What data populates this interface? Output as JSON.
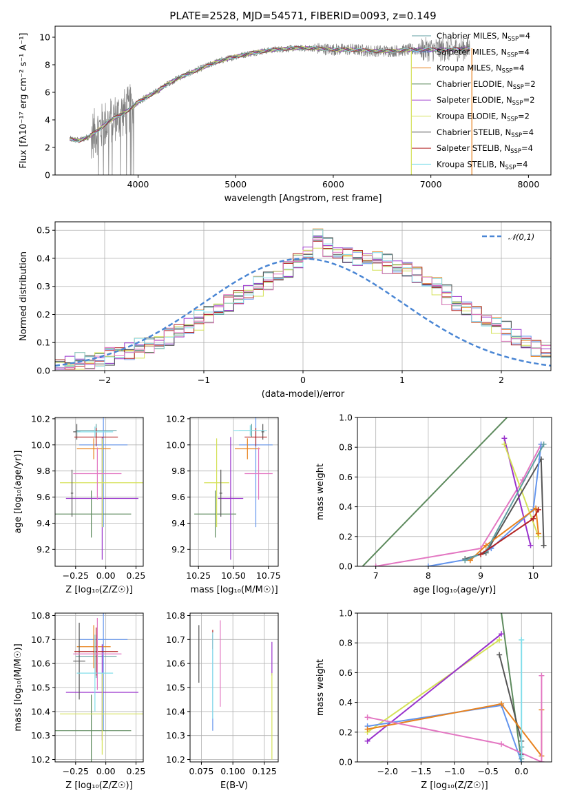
{
  "title": "PLATE=2528, MJD=54571, FIBERID=0093, z=0.149",
  "palette": [
    "#5f9ea0",
    "#6495ed",
    "#e8821e",
    "#5d8a5d",
    "#9932cc",
    "#d4e157",
    "#555555",
    "#b22222",
    "#80deea",
    "#e377c2"
  ],
  "chart_data": [
    {
      "type": "line",
      "id": "spectrum",
      "title": "PLATE=2528, MJD=54571, FIBERID=0093, z=0.149",
      "xlabel": "wavelength [Angstrom, rest frame]",
      "ylabel": "Flux [fλ10⁻¹⁷ erg cm⁻² s⁻¹ A⁻¹]",
      "xlim": [
        3150,
        8230
      ],
      "ylim": [
        0,
        10.8
      ],
      "xticks": [
        4000,
        5000,
        6000,
        7000,
        8000
      ],
      "yticks": [
        0,
        2,
        4,
        6,
        8,
        10
      ],
      "grid": false,
      "legend_position": "top-right",
      "legend": [
        {
          "label": "Chabrier MILES, N",
          "sub": "SSP",
          "tail": "=4",
          "color": "#5f9ea0"
        },
        {
          "label": "Salpeter MILES, N",
          "sub": "SSP",
          "tail": "=4",
          "color": "#6495ed"
        },
        {
          "label": "Kroupa MILES, N",
          "sub": "SSP",
          "tail": "=4",
          "color": "#e8821e"
        },
        {
          "label": "Chabrier ELODIE, N",
          "sub": "SSP",
          "tail": "=2",
          "color": "#5d8a5d"
        },
        {
          "label": "Salpeter ELODIE, N",
          "sub": "SSP",
          "tail": "=2",
          "color": "#9932cc"
        },
        {
          "label": "Kroupa ELODIE, N",
          "sub": "SSP",
          "tail": "=2",
          "color": "#d4e157"
        },
        {
          "label": "Chabrier STELIB, N",
          "sub": "SSP",
          "tail": "=4",
          "color": "#555555"
        },
        {
          "label": "Salpeter STELIB, N",
          "sub": "SSP",
          "tail": "=4",
          "color": "#b22222"
        },
        {
          "label": "Kroupa STELIB, N",
          "sub": "SSP",
          "tail": "=4",
          "color": "#80deea"
        }
      ],
      "continuum": {
        "wavelength": [
          3300,
          3400,
          3500,
          3600,
          3700,
          3800,
          3900,
          4000,
          4100,
          4200,
          4300,
          4400,
          4500,
          4600,
          4800,
          5000,
          5200,
          5400,
          5600,
          5800,
          6000,
          6200,
          6400,
          6600,
          6800,
          7000,
          7200,
          7400
        ],
        "flux": [
          2.6,
          2.5,
          2.8,
          3.3,
          3.9,
          4.3,
          4.7,
          5.3,
          5.7,
          6.1,
          6.6,
          7.0,
          7.3,
          7.6,
          8.2,
          8.6,
          8.9,
          9.1,
          9.2,
          9.2,
          9.1,
          9.1,
          9.0,
          9.0,
          9.1,
          9.1,
          9.1,
          9.2
        ]
      },
      "model_range": [
        3300,
        7400
      ],
      "model_cutoffs": [
        6800,
        7420
      ]
    },
    {
      "type": "histogram",
      "id": "residuals",
      "xlabel": "(data-model)/error",
      "ylabel": "Normed distribution",
      "xlim": [
        -2.5,
        2.5
      ],
      "ylim": [
        0,
        0.53
      ],
      "xticks": [
        -2,
        -1,
        0,
        1,
        2
      ],
      "xticklabels": [
        "−2",
        "−1",
        "0",
        "1",
        "2"
      ],
      "yticks": [
        0,
        0.1,
        0.2,
        0.3,
        0.4,
        0.5
      ],
      "yticklabels": [
        "0.0",
        "0.1",
        "0.2",
        "0.3",
        "0.4",
        "0.5"
      ],
      "grid": true,
      "legend_position": "top-right",
      "reference_curve": {
        "name": "𝒩(0,1)",
        "color": "#4a86d4"
      },
      "bin_width": 0.1,
      "bin_start": -2.5,
      "base_values": [
        0.02,
        0.02,
        0.03,
        0.03,
        0.04,
        0.05,
        0.06,
        0.07,
        0.08,
        0.09,
        0.1,
        0.12,
        0.14,
        0.16,
        0.18,
        0.2,
        0.22,
        0.24,
        0.26,
        0.28,
        0.3,
        0.32,
        0.34,
        0.36,
        0.39,
        0.42,
        0.47,
        0.44,
        0.42,
        0.41,
        0.4,
        0.4,
        0.39,
        0.38,
        0.37,
        0.36,
        0.34,
        0.32,
        0.3,
        0.27,
        0.24,
        0.22,
        0.2,
        0.18,
        0.16,
        0.14,
        0.12,
        0.1,
        0.08,
        0.07,
        0.06,
        0.05,
        0.04,
        0.03,
        0.03,
        0.02
      ]
    },
    {
      "type": "scatter",
      "id": "age-vs-Z",
      "xlabel": "Z [log₁₀(Z/Z☉)]",
      "ylabel": "age  [log₁₀(age/yr)]",
      "xlim": [
        -0.42,
        0.31
      ],
      "ylim": [
        9.07,
        10.21
      ],
      "xticks": [
        -0.25,
        0.0,
        0.25
      ],
      "xticklabels": [
        "−0.25",
        "0.00",
        "0.25"
      ],
      "yticks": [
        9.2,
        9.4,
        9.6,
        9.8,
        10.0,
        10.2
      ],
      "yticklabels": [
        "9.2",
        "9.4",
        "9.6",
        "9.8",
        "10.0",
        "10.2"
      ],
      "grid": true,
      "crosses": [
        {
          "x": -0.08,
          "y": 10.11,
          "xerr": 0.17,
          "yerr": 0.05,
          "color": "#5f9ea0"
        },
        {
          "x": -0.02,
          "y": 10.0,
          "xerr": 0.2,
          "yerr": 0.63,
          "color": "#6495ed"
        },
        {
          "x": -0.1,
          "y": 9.97,
          "xerr": 0.14,
          "yerr": 0.08,
          "color": "#e8821e"
        },
        {
          "x": -0.12,
          "y": 9.47,
          "xerr": 0.33,
          "yerr": 0.18,
          "color": "#5d8a5d"
        },
        {
          "x": -0.03,
          "y": 9.59,
          "xerr": 0.3,
          "yerr": 0.47,
          "color": "#9932cc"
        },
        {
          "x": -0.03,
          "y": 9.71,
          "xerr": 0.35,
          "yerr": 0.34,
          "color": "#d4e157"
        },
        {
          "x": -0.24,
          "y": 10.1,
          "xerr": 0.03,
          "yerr": 0.06,
          "color": "#555555"
        },
        {
          "x": -0.08,
          "y": 10.06,
          "xerr": 0.18,
          "yerr": 0.07,
          "color": "#b22222"
        },
        {
          "x": -0.09,
          "y": 10.1,
          "xerr": 0.15,
          "yerr": 0.04,
          "color": "#80deea"
        },
        {
          "x": -0.07,
          "y": 9.78,
          "xerr": 0.2,
          "yerr": 0.2,
          "color": "#e377c2"
        },
        {
          "x": -0.28,
          "y": 9.63,
          "xerr": 0.01,
          "yerr": 0.18,
          "color": "#555555"
        }
      ]
    },
    {
      "type": "scatter",
      "id": "age-vs-mass",
      "xlabel": "mass [log₁₀(M/M☉)]",
      "ylabel": "",
      "xlim": [
        10.19,
        10.82
      ],
      "ylim": [
        9.07,
        10.21
      ],
      "xticks": [
        10.25,
        10.5,
        10.75
      ],
      "xticklabels": [
        "10.25",
        "10.50",
        "10.75"
      ],
      "yticks": [
        9.2,
        9.4,
        9.6,
        9.8,
        10.0,
        10.2
      ],
      "yticklabels": [
        "9.2",
        "9.4",
        "9.6",
        "9.8",
        "10.0",
        "10.2"
      ],
      "grid": true,
      "crosses": [
        {
          "x": 10.63,
          "y": 10.11,
          "xerr": 0.09,
          "yerr": 0.05,
          "color": "#5f9ea0"
        },
        {
          "x": 10.66,
          "y": 10.0,
          "xerr": 0.12,
          "yerr": 0.63,
          "color": "#6495ed"
        },
        {
          "x": 10.6,
          "y": 9.97,
          "xerr": 0.09,
          "yerr": 0.08,
          "color": "#e8821e"
        },
        {
          "x": 10.37,
          "y": 9.47,
          "xerr": 0.15,
          "yerr": 0.18,
          "color": "#5d8a5d"
        },
        {
          "x": 10.48,
          "y": 9.59,
          "xerr": 0.09,
          "yerr": 0.47,
          "color": "#9932cc"
        },
        {
          "x": 10.38,
          "y": 9.71,
          "xerr": 0.09,
          "yerr": 0.34,
          "color": "#d4e157"
        },
        {
          "x": 10.71,
          "y": 10.1,
          "xerr": 0.01,
          "yerr": 0.06,
          "color": "#555555"
        },
        {
          "x": 10.66,
          "y": 10.06,
          "xerr": 0.08,
          "yerr": 0.07,
          "color": "#b22222"
        },
        {
          "x": 10.62,
          "y": 10.11,
          "xerr": 0.12,
          "yerr": 0.04,
          "color": "#80deea"
        },
        {
          "x": 10.68,
          "y": 9.78,
          "xerr": 0.1,
          "yerr": 0.2,
          "color": "#e377c2"
        },
        {
          "x": 10.41,
          "y": 9.63,
          "xerr": 0.01,
          "yerr": 0.18,
          "color": "#555555"
        }
      ]
    },
    {
      "type": "line",
      "id": "massweight-vs-age",
      "xlabel": "age  [log₁₀(age/yr)]",
      "ylabel": "mass weight",
      "xlim": [
        6.65,
        10.35
      ],
      "ylim": [
        0,
        1.0
      ],
      "xticks": [
        7,
        8,
        9,
        10
      ],
      "xticklabels": [
        "7",
        "8",
        "9",
        "10"
      ],
      "yticks": [
        0,
        0.2,
        0.4,
        0.6,
        0.8,
        1.0
      ],
      "yticklabels": [
        "0.0",
        "0.2",
        "0.4",
        "0.6",
        "0.8",
        "1.0"
      ],
      "grid": true,
      "series": [
        {
          "color": "#5d8a5d",
          "x": [
            6.75,
            9.5
          ],
          "y": [
            0.0,
            1.0
          ],
          "markers": false
        },
        {
          "color": "#e377c2",
          "x": [
            7.0,
            9.0,
            9.8,
            10.15
          ],
          "y": [
            0.0,
            0.12,
            0.58,
            0.82
          ],
          "markers": true
        },
        {
          "color": "#9932cc",
          "x": [
            9.45,
            9.95
          ],
          "y": [
            0.86,
            0.14
          ],
          "markers": true
        },
        {
          "color": "#d4e157",
          "x": [
            9.45,
            10.1
          ],
          "y": [
            0.82,
            0.2
          ],
          "markers": true
        },
        {
          "color": "#555555",
          "x": [
            8.7,
            9.1,
            10.15,
            10.2
          ],
          "y": [
            0.05,
            0.09,
            0.72,
            0.14
          ],
          "markers": true
        },
        {
          "color": "#6495ed",
          "x": [
            8.0,
            8.8,
            9.2,
            10.0,
            10.15
          ],
          "y": [
            0.0,
            0.05,
            0.12,
            0.38,
            0.82
          ],
          "markers": true
        },
        {
          "color": "#e8821e",
          "x": [
            8.8,
            9.1,
            10.05,
            10.1
          ],
          "y": [
            0.04,
            0.14,
            0.39,
            0.22
          ],
          "markers": true
        },
        {
          "color": "#5f9ea0",
          "x": [
            8.7,
            9.1,
            10.2
          ],
          "y": [
            0.04,
            0.1,
            0.82
          ],
          "markers": true
        },
        {
          "color": "#b22222",
          "x": [
            9.0,
            10.0,
            10.1
          ],
          "y": [
            0.08,
            0.32,
            0.38
          ],
          "markers": true
        }
      ]
    },
    {
      "type": "scatter",
      "id": "mass-vs-Z",
      "xlabel": "Z [log₁₀(Z/Z☉)]",
      "ylabel": "mass [log₁₀(M/M☉)]",
      "xlim": [
        -0.42,
        0.31
      ],
      "ylim": [
        10.19,
        10.81
      ],
      "xticks": [
        -0.25,
        0.0,
        0.25
      ],
      "xticklabels": [
        "−0.25",
        "0.00",
        "0.25"
      ],
      "yticks": [
        10.2,
        10.3,
        10.4,
        10.5,
        10.6,
        10.7,
        10.8
      ],
      "yticklabels": [
        "10.2",
        "10.3",
        "10.4",
        "10.5",
        "10.6",
        "10.7",
        "10.8"
      ],
      "grid": true,
      "crosses": [
        {
          "x": -0.08,
          "y": 10.63,
          "xerr": 0.17,
          "yerr": 0.09,
          "color": "#5f9ea0"
        },
        {
          "x": -0.02,
          "y": 10.7,
          "xerr": 0.2,
          "yerr": 0.38,
          "color": "#6495ed"
        },
        {
          "x": -0.1,
          "y": 10.67,
          "xerr": 0.14,
          "yerr": 0.09,
          "color": "#e8821e"
        },
        {
          "x": -0.12,
          "y": 10.32,
          "xerr": 0.33,
          "yerr": 0.15,
          "color": "#5d8a5d"
        },
        {
          "x": -0.03,
          "y": 10.48,
          "xerr": 0.3,
          "yerr": 0.2,
          "color": "#9932cc"
        },
        {
          "x": -0.03,
          "y": 10.39,
          "xerr": 0.35,
          "yerr": 0.17,
          "color": "#d4e157"
        },
        {
          "x": -0.22,
          "y": 10.61,
          "xerr": 0.05,
          "yerr": 0.16,
          "color": "#555555"
        },
        {
          "x": -0.08,
          "y": 10.65,
          "xerr": 0.18,
          "yerr": 0.1,
          "color": "#b22222"
        },
        {
          "x": -0.09,
          "y": 10.56,
          "xerr": 0.15,
          "yerr": 0.16,
          "color": "#80deea"
        },
        {
          "x": -0.07,
          "y": 10.64,
          "xerr": 0.2,
          "yerr": 0.15,
          "color": "#e377c2"
        }
      ]
    },
    {
      "type": "scatter",
      "id": "mass-vs-ebv",
      "xlabel": "E(B-V)",
      "ylabel": "",
      "xlim": [
        0.066,
        0.136
      ],
      "ylim": [
        10.19,
        10.81
      ],
      "xticks": [
        0.075,
        0.1,
        0.125
      ],
      "xticklabels": [
        "0.075",
        "0.100",
        "0.125"
      ],
      "yticks": [
        10.2,
        10.3,
        10.4,
        10.5,
        10.6,
        10.7,
        10.8
      ],
      "yticklabels": [
        "10.2",
        "10.3",
        "10.4",
        "10.5",
        "10.6",
        "10.7",
        "10.8"
      ],
      "grid": true,
      "crosses": [
        {
          "x": 0.073,
          "y": 10.64,
          "xerr": 0,
          "yerr": 0.12,
          "color": "#555555"
        },
        {
          "x": 0.084,
          "y": 10.52,
          "xerr": 0,
          "yerr": 0.2,
          "color": "#6495ed"
        },
        {
          "x": 0.084,
          "y": 10.7,
          "xerr": 0,
          "yerr": 0.04,
          "color": "#b22222"
        },
        {
          "x": 0.084,
          "y": 10.55,
          "xerr": 0,
          "yerr": 0.18,
          "color": "#80deea"
        },
        {
          "x": 0.09,
          "y": 10.6,
          "xerr": 0,
          "yerr": 0.18,
          "color": "#e377c2"
        },
        {
          "x": 0.131,
          "y": 10.62,
          "xerr": 0,
          "yerr": 0.07,
          "color": "#9932cc"
        },
        {
          "x": 0.131,
          "y": 10.38,
          "xerr": 0,
          "yerr": 0.18,
          "color": "#d4e157"
        }
      ]
    },
    {
      "type": "line",
      "id": "massweight-vs-Z",
      "xlabel": "Z [log₁₀(Z/Z☉)]",
      "ylabel": "mass weight",
      "xlim": [
        -2.45,
        0.45
      ],
      "ylim": [
        0,
        1.0
      ],
      "xticks": [
        -2.0,
        -1.5,
        -1.0,
        -0.5,
        0.0
      ],
      "xticklabels": [
        "−2.0",
        "−1.5",
        "−1.0",
        "−0.5",
        "0.0"
      ],
      "yticks": [
        0,
        0.2,
        0.4,
        0.6,
        0.8,
        1.0
      ],
      "yticklabels": [
        "0.0",
        "0.2",
        "0.4",
        "0.6",
        "0.8",
        "1.0"
      ],
      "grid": true,
      "series": [
        {
          "color": "#5d8a5d",
          "x": [
            -0.3,
            0.0
          ],
          "y": [
            1.0,
            0.0
          ],
          "markers": false
        },
        {
          "color": "#555555",
          "x": [
            -0.33,
            0.0,
            0.0
          ],
          "y": [
            0.72,
            0.14,
            0.05
          ],
          "markers": true
        },
        {
          "color": "#d4e157",
          "x": [
            -2.3,
            -0.33
          ],
          "y": [
            0.2,
            0.82
          ],
          "markers": true
        },
        {
          "color": "#9932cc",
          "x": [
            -2.3,
            -0.3
          ],
          "y": [
            0.14,
            0.86
          ],
          "markers": true
        },
        {
          "color": "#6495ed",
          "x": [
            -2.3,
            -0.3,
            0.0
          ],
          "y": [
            0.24,
            0.38,
            0.0
          ],
          "markers": true
        },
        {
          "color": "#e8821e",
          "x": [
            -2.3,
            -0.3,
            0.3,
            0.3
          ],
          "y": [
            0.22,
            0.39,
            0.04,
            0.35
          ],
          "markers": true
        },
        {
          "color": "#e377c2",
          "x": [
            -2.3,
            -0.3,
            0.3,
            0.3
          ],
          "y": [
            0.3,
            0.12,
            0.0,
            0.58
          ],
          "markers": true
        },
        {
          "color": "#5f9ea0",
          "x": [
            0.0,
            0.0
          ],
          "y": [
            0.1,
            0.02
          ],
          "markers": true
        },
        {
          "color": "#80deea",
          "x": [
            0.0,
            0.0
          ],
          "y": [
            0.82,
            0.04
          ],
          "markers": true
        }
      ]
    }
  ]
}
